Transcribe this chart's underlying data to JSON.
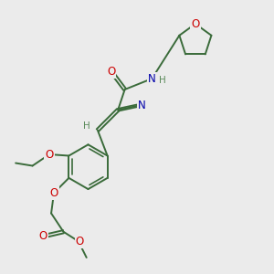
{
  "bg_color": "#ebebeb",
  "bond_color": "#3a6b3a",
  "bond_width": 1.4,
  "atom_colors": {
    "O": "#cc0000",
    "N": "#0000aa",
    "C": "#3a6b3a",
    "H": "#5a8a5a"
  },
  "fs": 8.5,
  "fs_small": 7.5,
  "dbo": 0.055
}
